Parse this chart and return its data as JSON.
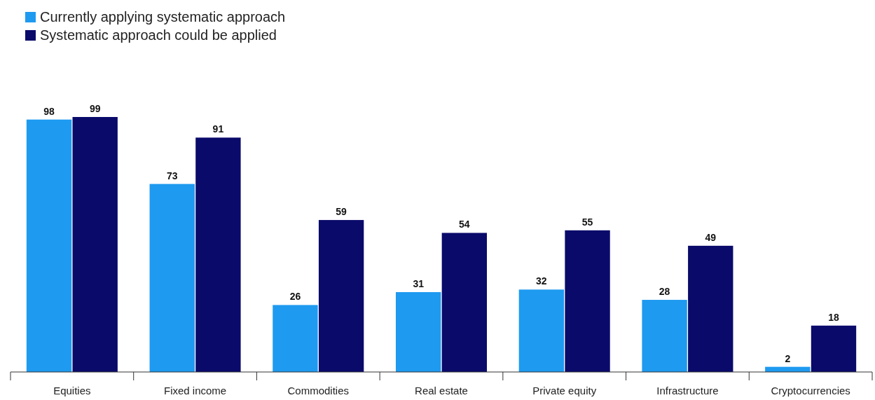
{
  "chart_data": {
    "type": "bar",
    "categories": [
      "Equities",
      "Fixed income",
      "Commodities",
      "Real estate",
      "Private equity",
      "Infrastructure",
      "Cryptocurrencies"
    ],
    "series": [
      {
        "name": "Currently applying systematic approach",
        "color": "#1e9af0",
        "values": [
          98,
          73,
          26,
          31,
          32,
          28,
          2
        ]
      },
      {
        "name": "Systematic approach could be applied",
        "color": "#0a0a6b",
        "values": [
          99,
          91,
          59,
          54,
          55,
          49,
          18
        ]
      }
    ],
    "data_labels": true,
    "legend": "top left",
    "grid": false
  }
}
